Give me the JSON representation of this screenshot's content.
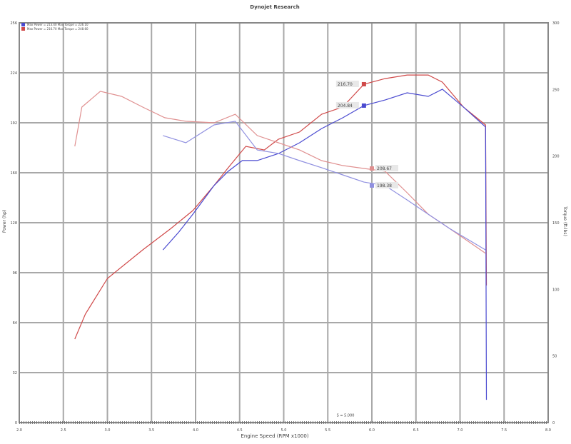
{
  "chart_data": {
    "type": "line",
    "title": "Dynojet Research",
    "subtitle": "",
    "xlabel": "Engine Speed (RPM x1000)",
    "ylabel_left": "Power (hp)",
    "ylabel_right": "Torque (ft-lbs)",
    "xlim": [
      2.0,
      8.0
    ],
    "xticks": [
      "2.0",
      "2.5",
      "3.0",
      "3.5",
      "4.0",
      "4.5",
      "5.0",
      "5.5",
      "6.0",
      "6.5",
      "7.0",
      "7.5",
      "8.0"
    ],
    "ylim_left": [
      0,
      256
    ],
    "yticks_left": [
      "0",
      "32",
      "64",
      "96",
      "128",
      "160",
      "192",
      "224",
      "256"
    ],
    "ylim_right": [
      0,
      300
    ],
    "yticks_right": [
      "0",
      "50",
      "100",
      "150",
      "200",
      "250",
      "300"
    ],
    "grid": true,
    "legend_placement": "top-left",
    "legend": [
      {
        "label": "Max Power = 213.40   Max Torque = 226.10",
        "color": "#4a4ad0"
      },
      {
        "label": "Max Power = 216.70   Max Torque = 248.60",
        "color": "#d04a4a"
      }
    ],
    "colors": {
      "red": "#d04a4a",
      "blue": "#4a4ad0",
      "grid": "#a8a8a8"
    },
    "series": [
      {
        "axis": "left",
        "color": "#d04a4a",
        "x": [
          2.63,
          2.75,
          3.0,
          3.4,
          3.72,
          3.97,
          4.21,
          4.37,
          4.57,
          4.78,
          4.94,
          5.18,
          5.43,
          5.67,
          5.91,
          6.15,
          6.4,
          6.64,
          6.8,
          7.04,
          7.29,
          7.3
        ],
        "y": [
          53.5,
          69.5,
          92.3,
          110.6,
          124.3,
          135.8,
          151.8,
          163.2,
          176.9,
          174.6,
          181.5,
          186.1,
          197.5,
          202.1,
          216.7,
          220.3,
          222.6,
          222.6,
          218,
          202,
          190.6,
          87.8
        ]
      },
      {
        "axis": "left",
        "color": "#4a4ad0",
        "x": [
          3.63,
          3.81,
          3.97,
          4.21,
          4.37,
          4.53,
          4.7,
          4.94,
          5.18,
          5.43,
          5.67,
          5.91,
          6.15,
          6.4,
          6.64,
          6.8,
          7.04,
          7.29,
          7.3
        ],
        "y": [
          110.6,
          122,
          133.5,
          151.8,
          160.9,
          167.8,
          167.8,
          172.3,
          179.2,
          188.3,
          195.2,
          203,
          206.6,
          211.2,
          208.9,
          213.5,
          202,
          189.3,
          14.6
        ]
      },
      {
        "axis": "right",
        "color": "#e09090",
        "x": [
          2.63,
          2.71,
          2.92,
          3.16,
          3.4,
          3.65,
          3.89,
          4.21,
          4.45,
          4.7,
          4.94,
          5.18,
          5.43,
          5.67,
          5.91,
          6.15,
          6.4,
          6.64,
          6.88,
          7.29
        ],
        "y": [
          207.3,
          236.8,
          248.6,
          244.8,
          236.8,
          228.8,
          226.1,
          225,
          231.4,
          215.4,
          210,
          204.6,
          196.6,
          192.9,
          190.7,
          188.6,
          172.5,
          156.4,
          145.7,
          127
        ]
      },
      {
        "axis": "right",
        "color": "#9090e0",
        "x": [
          3.63,
          3.89,
          4.21,
          4.45,
          4.7,
          4.94,
          5.18,
          5.43,
          5.67,
          5.91,
          6.15,
          6.4,
          6.64,
          6.88,
          7.29
        ],
        "y": [
          215.4,
          210,
          223.4,
          226.1,
          204.6,
          202,
          196.6,
          191.3,
          185.9,
          180.5,
          177.9,
          167.1,
          156.4,
          145.7,
          129.6
        ]
      }
    ],
    "annotations": [
      {
        "text": "216.70",
        "x": 5.91,
        "y": 216.7,
        "axis": "left",
        "color": "#d04a4a"
      },
      {
        "text": "204.84",
        "x": 5.91,
        "y": 203,
        "axis": "left",
        "color": "#4a4ad0"
      },
      {
        "text": "208.67",
        "x": 6.0,
        "y": 190.7,
        "axis": "right",
        "color": "#e09090"
      },
      {
        "text": "198.38",
        "x": 6.0,
        "y": 177.9,
        "axis": "right",
        "color": "#9090e0"
      },
      {
        "text": "S = 5.000",
        "x": 5.6,
        "y": 4,
        "axis": "left",
        "color": "#444"
      }
    ]
  }
}
